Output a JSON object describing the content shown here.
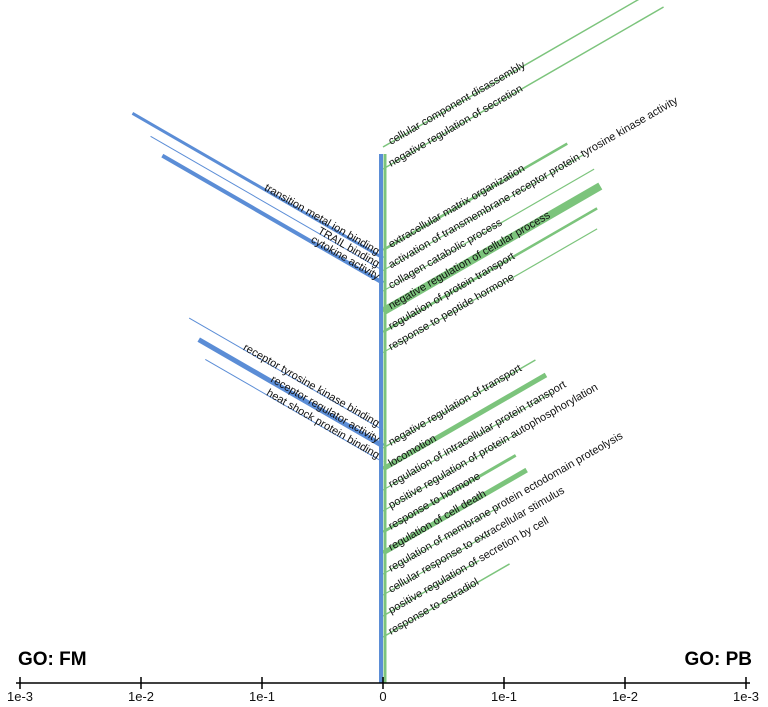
{
  "chart_data": {
    "type": "bar",
    "x_axis": {
      "scale": "log",
      "tick_labels": [
        "1e-3",
        "1e-2",
        "1e-1",
        "0",
        "1e-1",
        "1e-2",
        "1e-3"
      ],
      "left_range": [
        1,
        0.001
      ],
      "right_range": [
        1,
        0.001
      ]
    },
    "colors": {
      "FM": "#5b8dd6",
      "PB": "#7cc47c"
    },
    "legend": {
      "FM": "GO: FM",
      "PB": "GO: PB"
    },
    "grid": false,
    "series": [
      {
        "name": "GO: FM",
        "side": "left",
        "groups": [
          {
            "terms": [
              {
                "label": "transition metal ion binding",
                "value": 0.0085,
                "weight": 3
              },
              {
                "label": "TRAIL binding",
                "value": 0.012,
                "weight": 1
              },
              {
                "label": "cytokine activity",
                "value": 0.015,
                "weight": 4
              }
            ]
          },
          {
            "terms": [
              {
                "label": "receptor tyrosine kinase binding",
                "value": 0.025,
                "weight": 1
              },
              {
                "label": "receptor regulator activity",
                "value": 0.03,
                "weight": 5
              },
              {
                "label": "heat shock protein binding",
                "value": 0.034,
                "weight": 1
              }
            ]
          }
        ]
      },
      {
        "name": "GO: PB",
        "side": "right",
        "groups": [
          {
            "terms": [
              {
                "label": "cellular component disassembly",
                "value": 0.0012,
                "weight": 1.5
              },
              {
                "label": "negative regulation of secretion",
                "value": 0.0048,
                "weight": 1.5
              }
            ]
          },
          {
            "terms": [
              {
                "label": "extracellular matrix organization",
                "value": 0.03,
                "weight": 2.5
              },
              {
                "label": "activation of transmembrane receptor protein tyrosine kinase activity",
                "value": 0.022,
                "weight": 1.2
              },
              {
                "label": "collagen catabolic process",
                "value": 0.018,
                "weight": 1.2
              },
              {
                "label": "negative regulation of cellular process",
                "value": 0.016,
                "weight": 8
              },
              {
                "label": "regulation of protein transport",
                "value": 0.017,
                "weight": 2.5
              },
              {
                "label": "response to peptide hormone",
                "value": 0.017,
                "weight": 1.2
              }
            ]
          },
          {
            "terms": [
              {
                "label": "negative regulation of transport",
                "value": 0.055,
                "weight": 1.5
              },
              {
                "label": "locomotion",
                "value": 0.045,
                "weight": 5
              },
              {
                "label": "regulation of intracellular protein transport",
                "value": 0.04,
                "weight": 1.2
              },
              {
                "label": "positive regulation of protein autophosphorylation",
                "value": 0.075,
                "weight": 1.2
              },
              {
                "label": "response to hormone",
                "value": 0.08,
                "weight": 3
              },
              {
                "label": "regulation of cell death",
                "value": 0.065,
                "weight": 5
              },
              {
                "label": "regulation of membrane protein ectodomain proteolysis",
                "value": 0.11,
                "weight": 1.2
              },
              {
                "label": "cellular response to extracellular stimulus",
                "value": 0.13,
                "weight": 1.2
              },
              {
                "label": "positive regulation of secretion by cell",
                "value": 0.16,
                "weight": 1.5
              },
              {
                "label": "response to estradiol",
                "value": 0.09,
                "weight": 1.5
              }
            ]
          }
        ]
      }
    ]
  }
}
